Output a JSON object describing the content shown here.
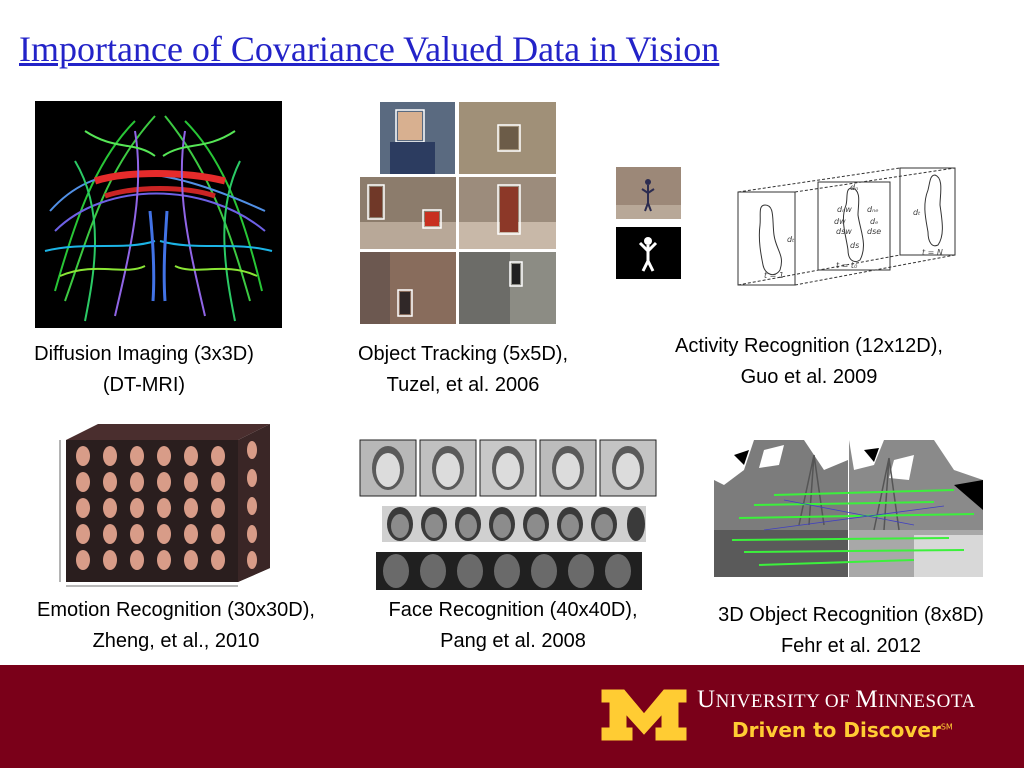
{
  "slide": {
    "title": "Importance of Covariance Valued Data in Vision"
  },
  "figures": [
    {
      "id": "dti",
      "caption_line1": "Diffusion Imaging (3x3D)",
      "caption_line2": "(DT-MRI)"
    },
    {
      "id": "tracking",
      "caption_line1": "Object Tracking (5x5D),",
      "caption_line2": "Tuzel, et al. 2006"
    },
    {
      "id": "activity",
      "caption_line1": "Activity Recognition (12x12D),",
      "caption_line2": "Guo et al. 2009"
    },
    {
      "id": "emotion",
      "caption_line1": "Emotion Recognition (30x30D),",
      "caption_line2": "Zheng, et al., 2010"
    },
    {
      "id": "face",
      "caption_line1": "Face Recognition (40x40D),",
      "caption_line2": "Pang et al. 2008"
    },
    {
      "id": "object3d",
      "caption_line1": "3D Object Recognition (8x8D)",
      "caption_line2": "Fehr et al. 2012"
    }
  ],
  "activity_diagram": {
    "labels": [
      "t = 1",
      "t = t₀",
      "t = N",
      "dₜ",
      "dₜ",
      "dₙ",
      "dₙₑ",
      "dₙw",
      "dₑ",
      "dw",
      "dsw",
      "dse",
      "ds"
    ]
  },
  "footer": {
    "university_cap1": "U",
    "university_rest1": "NIVERSITY OF ",
    "university_cap2": "M",
    "university_rest2": "INNESOTA",
    "tagline": "Driven to Discover",
    "tagline_mark": "SM",
    "colors": {
      "maroon": "#7a0019",
      "gold": "#ffcc33"
    }
  }
}
